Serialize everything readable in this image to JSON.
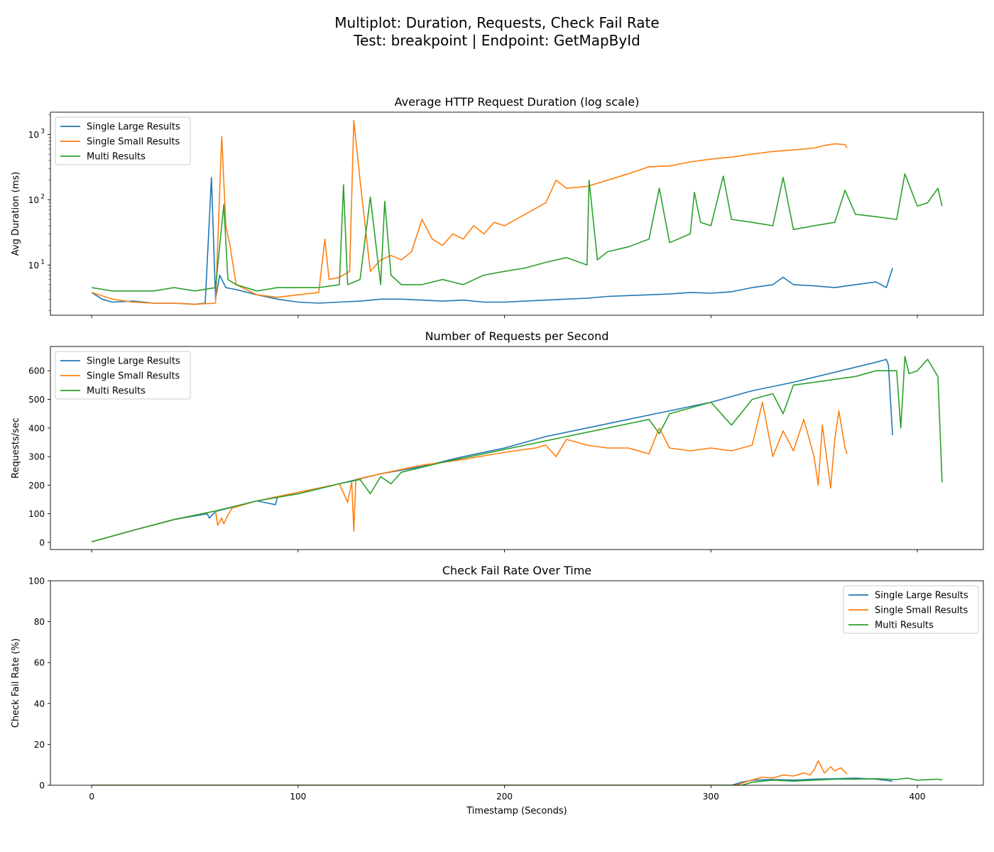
{
  "figure": {
    "title_line1": "Multiplot: Duration, Requests, Check Fail Rate",
    "title_line2": "Test: breakpoint | Endpoint: GetMapById"
  },
  "colors": {
    "series": [
      "#1f77b4",
      "#ff7f0e",
      "#2ca02c"
    ],
    "axes": "#000000",
    "legend_border": "#cccccc"
  },
  "chart_data": [
    {
      "type": "line",
      "title": "Average HTTP Request Duration (log scale)",
      "xlabel": "",
      "ylabel": "Avg Duration (ms)",
      "yscale": "log",
      "ylim": [
        1.7,
        2200
      ],
      "xlim": [
        -20,
        432
      ],
      "yticks": [
        10,
        100,
        1000
      ],
      "ytick_labels": [
        "10",
        "10",
        "10"
      ],
      "ytick_exponents": [
        "1",
        "2",
        "3"
      ],
      "xticks": [
        0,
        100,
        200,
        300,
        400
      ],
      "show_xtick_labels": false,
      "grid": false,
      "legend": "upper left",
      "series": [
        {
          "name": "Single Large Results",
          "x": [
            0,
            5,
            10,
            20,
            30,
            40,
            50,
            55,
            58,
            60,
            62,
            65,
            70,
            80,
            90,
            100,
            110,
            120,
            130,
            140,
            150,
            160,
            170,
            180,
            190,
            200,
            210,
            220,
            230,
            240,
            250,
            260,
            270,
            280,
            290,
            300,
            310,
            320,
            330,
            335,
            340,
            350,
            360,
            370,
            380,
            385,
            388
          ],
          "y": [
            3.8,
            3.0,
            2.7,
            2.8,
            2.6,
            2.6,
            2.5,
            2.6,
            220,
            3.0,
            7.0,
            4.5,
            4.2,
            3.5,
            3.0,
            2.7,
            2.6,
            2.7,
            2.8,
            3.0,
            3.0,
            2.9,
            2.8,
            2.9,
            2.7,
            2.7,
            2.8,
            2.9,
            3.0,
            3.1,
            3.3,
            3.4,
            3.5,
            3.6,
            3.8,
            3.7,
            3.9,
            4.5,
            5.0,
            6.5,
            5.0,
            4.8,
            4.5,
            5.0,
            5.5,
            4.5,
            9.0
          ]
        },
        {
          "name": "Single Small Results",
          "x": [
            0,
            10,
            20,
            30,
            40,
            50,
            60,
            63,
            65,
            67,
            70,
            80,
            90,
            100,
            110,
            113,
            115,
            120,
            125,
            127,
            130,
            135,
            140,
            145,
            150,
            155,
            160,
            165,
            170,
            175,
            180,
            185,
            190,
            195,
            200,
            210,
            220,
            225,
            230,
            240,
            250,
            260,
            270,
            280,
            290,
            300,
            310,
            320,
            330,
            340,
            350,
            355,
            360,
            365,
            366
          ],
          "y": [
            3.8,
            3.0,
            2.7,
            2.6,
            2.6,
            2.5,
            2.6,
            930,
            40,
            20,
            5.0,
            3.5,
            3.2,
            3.5,
            3.8,
            25,
            6.0,
            6.5,
            8.0,
            1650,
            200,
            8.0,
            12,
            14,
            12,
            16,
            50,
            25,
            20,
            30,
            25,
            40,
            30,
            45,
            40,
            60,
            90,
            200,
            150,
            160,
            200,
            250,
            320,
            330,
            380,
            420,
            450,
            500,
            550,
            580,
            620,
            680,
            720,
            700,
            620
          ]
        },
        {
          "name": "Multi Results",
          "x": [
            0,
            10,
            20,
            30,
            40,
            50,
            60,
            64,
            66,
            70,
            80,
            90,
            100,
            110,
            120,
            122,
            124,
            130,
            135,
            140,
            142,
            145,
            150,
            160,
            170,
            180,
            190,
            200,
            210,
            220,
            230,
            240,
            241,
            245,
            250,
            260,
            270,
            275,
            280,
            290,
            292,
            295,
            300,
            306,
            310,
            320,
            330,
            335,
            340,
            350,
            360,
            365,
            370,
            380,
            390,
            394,
            400,
            405,
            410,
            412
          ],
          "y": [
            4.5,
            4.0,
            4.0,
            4.0,
            4.5,
            4.0,
            4.5,
            85,
            6.0,
            5.0,
            4.0,
            4.5,
            4.5,
            4.5,
            5.0,
            170,
            5.0,
            6.0,
            110,
            5.0,
            95,
            7.0,
            5.0,
            5.0,
            6.0,
            5.0,
            7.0,
            8.0,
            9.0,
            11,
            13,
            10,
            200,
            12,
            16,
            19,
            25,
            150,
            22,
            30,
            130,
            45,
            40,
            230,
            50,
            45,
            40,
            220,
            35,
            40,
            45,
            140,
            60,
            55,
            50,
            250,
            80,
            90,
            150,
            80
          ]
        }
      ]
    },
    {
      "type": "line",
      "title": "Number of Requests per Second",
      "xlabel": "",
      "ylabel": "Requests/sec",
      "ylim": [
        -25,
        685
      ],
      "xlim": [
        -20,
        432
      ],
      "yticks": [
        0,
        100,
        200,
        300,
        400,
        500,
        600
      ],
      "xticks": [
        0,
        100,
        200,
        300,
        400
      ],
      "show_xtick_labels": false,
      "grid": false,
      "legend": "upper left",
      "series": [
        {
          "name": "Single Large Results",
          "x": [
            0,
            20,
            40,
            56,
            57,
            60,
            80,
            89,
            90,
            100,
            120,
            140,
            160,
            180,
            200,
            220,
            240,
            260,
            280,
            300,
            320,
            340,
            360,
            380,
            385,
            386,
            388
          ],
          "y": [
            2,
            42,
            80,
            100,
            85,
            108,
            145,
            132,
            158,
            170,
            205,
            240,
            265,
            300,
            330,
            370,
            400,
            430,
            460,
            490,
            530,
            560,
            595,
            630,
            640,
            620,
            375
          ]
        },
        {
          "name": "Single Small Results",
          "x": [
            0,
            20,
            40,
            60,
            61,
            63,
            64,
            66,
            68,
            80,
            100,
            120,
            124,
            126,
            127,
            128,
            140,
            160,
            180,
            200,
            215,
            220,
            225,
            230,
            240,
            250,
            260,
            270,
            275,
            280,
            290,
            300,
            310,
            320,
            325,
            330,
            335,
            340,
            345,
            350,
            352,
            354,
            358,
            360,
            362,
            365,
            366
          ],
          "y": [
            2,
            42,
            80,
            110,
            60,
            85,
            65,
            95,
            120,
            145,
            175,
            205,
            140,
            210,
            40,
            220,
            240,
            270,
            290,
            315,
            330,
            340,
            300,
            360,
            340,
            330,
            330,
            310,
            400,
            330,
            320,
            330,
            320,
            340,
            490,
            300,
            390,
            320,
            430,
            300,
            200,
            410,
            190,
            360,
            460,
            330,
            310
          ]
        },
        {
          "name": "Multi Results",
          "x": [
            0,
            20,
            40,
            60,
            80,
            100,
            120,
            130,
            135,
            140,
            145,
            150,
            170,
            190,
            210,
            230,
            250,
            270,
            275,
            280,
            290,
            300,
            310,
            320,
            330,
            335,
            340,
            350,
            360,
            370,
            380,
            390,
            392,
            394,
            396,
            400,
            405,
            410,
            412
          ],
          "y": [
            2,
            42,
            80,
            110,
            145,
            170,
            205,
            220,
            170,
            230,
            205,
            245,
            280,
            310,
            340,
            370,
            400,
            430,
            380,
            450,
            470,
            490,
            410,
            500,
            520,
            450,
            550,
            560,
            570,
            580,
            600,
            600,
            400,
            650,
            590,
            600,
            640,
            580,
            210
          ]
        }
      ]
    },
    {
      "type": "line",
      "title": "Check Fail Rate Over Time",
      "xlabel": "Timestamp (Seconds)",
      "ylabel": "Check Fail Rate (%)",
      "ylim": [
        0,
        100
      ],
      "xlim": [
        -20,
        432
      ],
      "yticks": [
        0,
        20,
        40,
        60,
        80,
        100
      ],
      "xticks": [
        0,
        100,
        200,
        300,
        400
      ],
      "show_xtick_labels": true,
      "grid": false,
      "legend": "upper right",
      "series": [
        {
          "name": "Single Large Results",
          "x": [
            0,
            100,
            200,
            300,
            310,
            315,
            320,
            330,
            340,
            350,
            360,
            370,
            380,
            388
          ],
          "y": [
            0,
            0,
            0,
            0,
            0,
            1.5,
            2.5,
            2.8,
            2.5,
            3.0,
            3.2,
            3.5,
            3.0,
            2.0
          ]
        },
        {
          "name": "Single Small Results",
          "x": [
            0,
            100,
            200,
            300,
            312,
            318,
            325,
            330,
            335,
            340,
            345,
            348,
            350,
            352,
            355,
            358,
            360,
            363,
            366
          ],
          "y": [
            0,
            0,
            0,
            0,
            0,
            2.0,
            4.0,
            3.5,
            5.0,
            4.5,
            6.0,
            5.0,
            7.5,
            12.0,
            6.0,
            9.0,
            7.0,
            8.5,
            5.5
          ]
        },
        {
          "name": "Multi Results",
          "x": [
            0,
            100,
            200,
            300,
            315,
            320,
            330,
            340,
            350,
            360,
            370,
            380,
            390,
            395,
            400,
            410,
            412
          ],
          "y": [
            0,
            0,
            0,
            0,
            0,
            1.5,
            2.5,
            2.0,
            2.5,
            3.0,
            3.0,
            3.2,
            2.8,
            3.5,
            2.5,
            3.0,
            2.5
          ]
        }
      ]
    }
  ]
}
